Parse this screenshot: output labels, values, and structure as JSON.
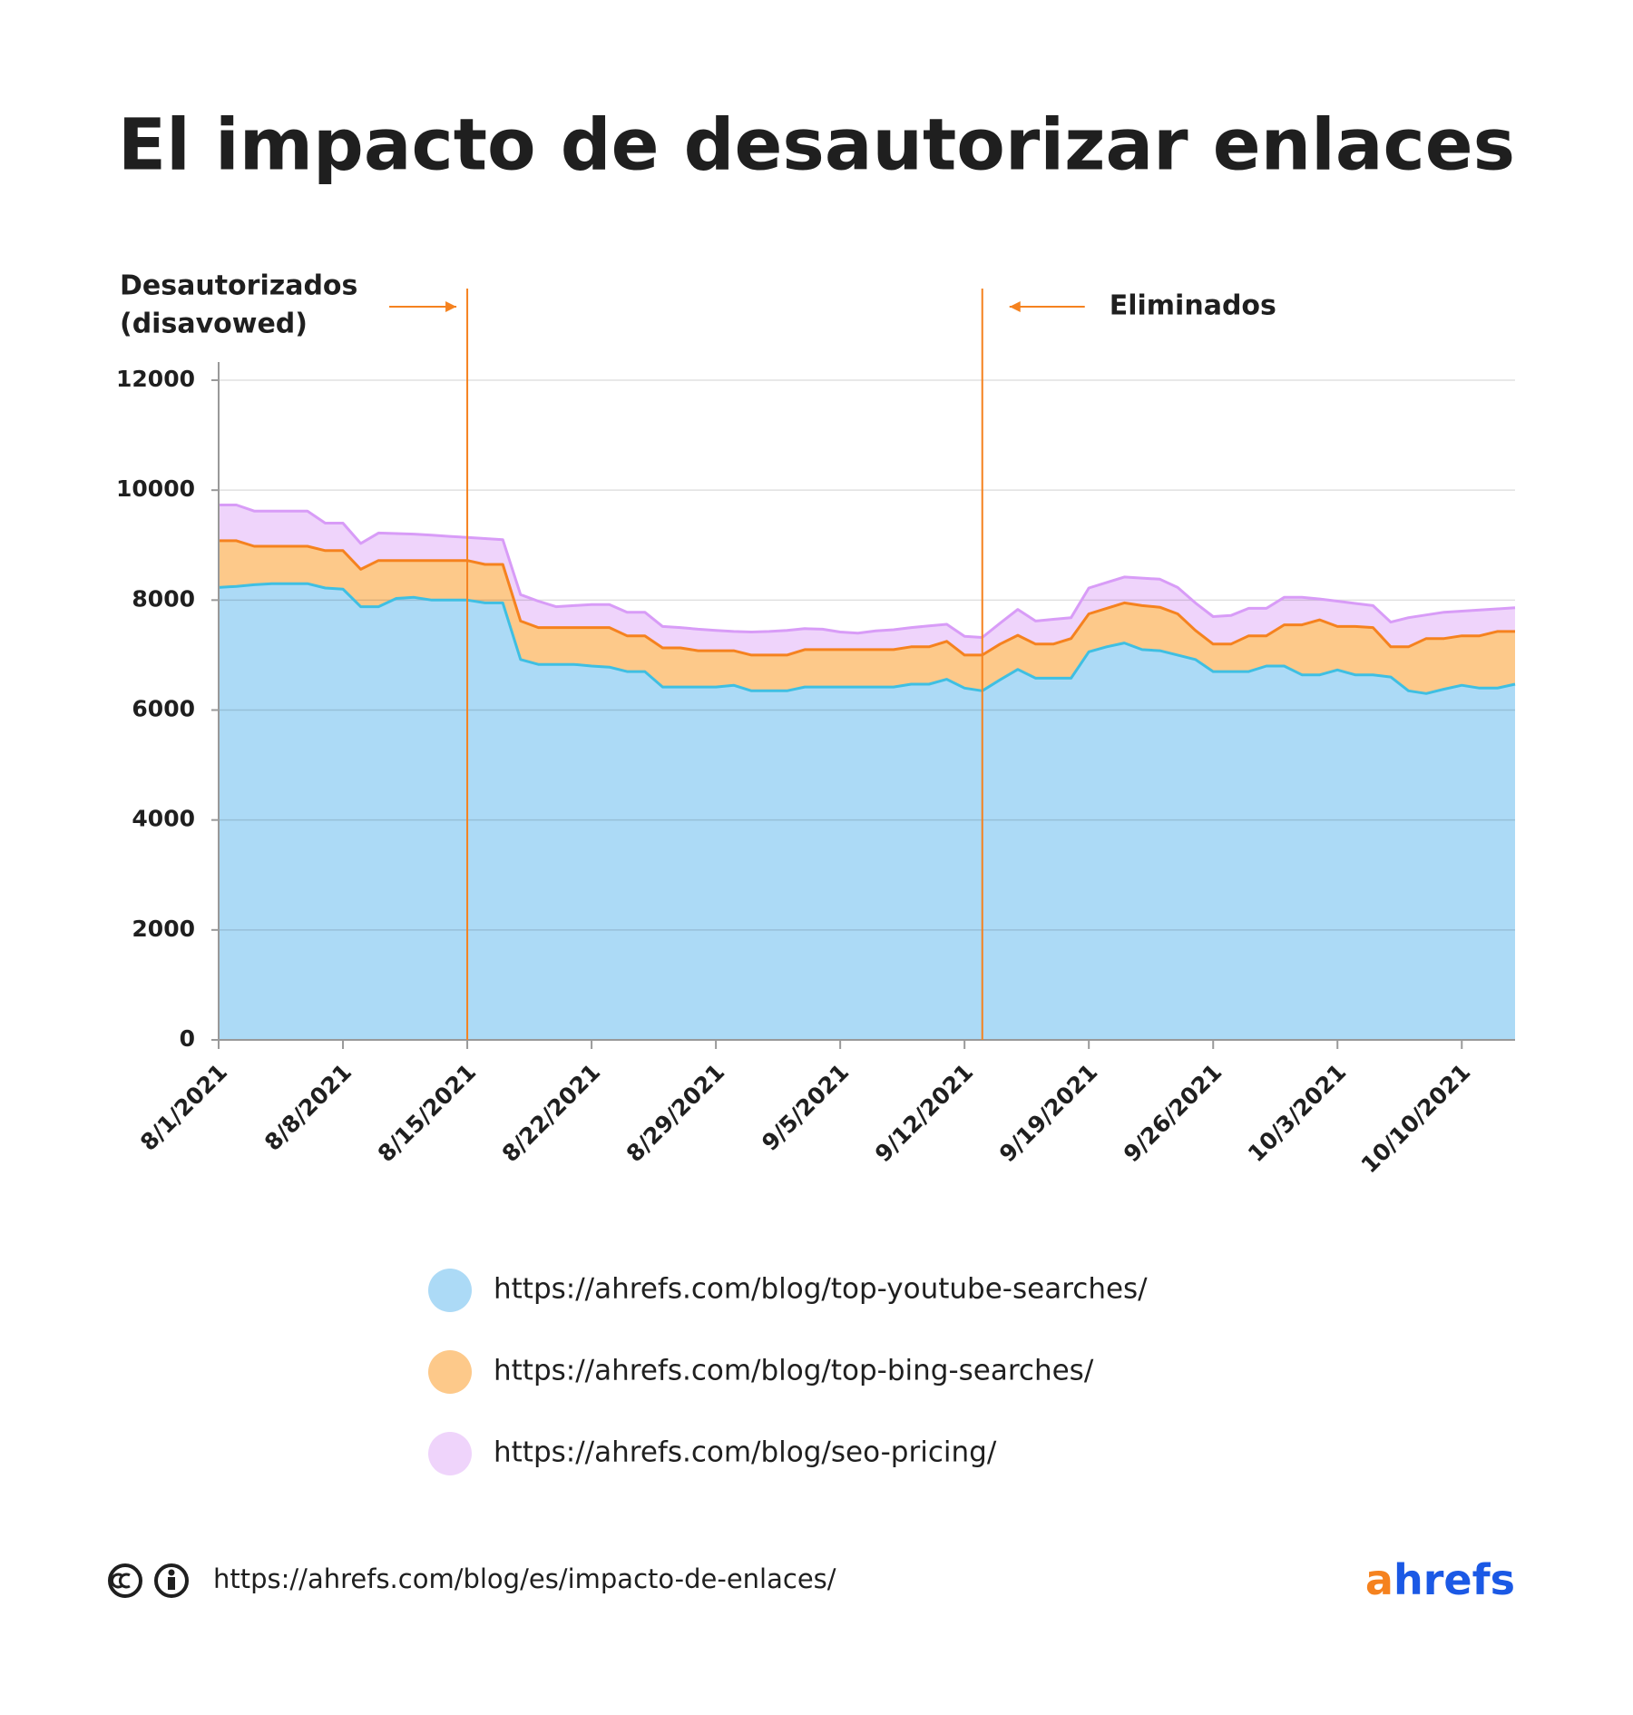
{
  "chart_data": {
    "type": "stacked_area",
    "title": "El impacto de desautorizar enlaces",
    "x": [
      "8/1/2021",
      "8/2/2021",
      "8/3/2021",
      "8/4/2021",
      "8/5/2021",
      "8/6/2021",
      "8/7/2021",
      "8/8/2021",
      "8/9/2021",
      "8/10/2021",
      "8/11/2021",
      "8/12/2021",
      "8/13/2021",
      "8/14/2021",
      "8/15/2021",
      "8/16/2021",
      "8/17/2021",
      "8/18/2021",
      "8/19/2021",
      "8/20/2021",
      "8/21/2021",
      "8/22/2021",
      "8/23/2021",
      "8/24/2021",
      "8/25/2021",
      "8/26/2021",
      "8/27/2021",
      "8/28/2021",
      "8/29/2021",
      "8/30/2021",
      "8/31/2021",
      "9/1/2021",
      "9/2/2021",
      "9/3/2021",
      "9/4/2021",
      "9/5/2021",
      "9/6/2021",
      "9/7/2021",
      "9/8/2021",
      "9/9/2021",
      "9/10/2021",
      "9/11/2021",
      "9/12/2021",
      "9/13/2021",
      "9/14/2021",
      "9/15/2021",
      "9/16/2021",
      "9/17/2021",
      "9/18/2021",
      "9/19/2021",
      "9/20/2021",
      "9/21/2021",
      "9/22/2021",
      "9/23/2021",
      "9/24/2021",
      "9/25/2021",
      "9/26/2021",
      "9/27/2021",
      "9/28/2021",
      "9/29/2021",
      "9/30/2021",
      "10/1/2021",
      "10/2/2021",
      "10/3/2021",
      "10/4/2021",
      "10/5/2021",
      "10/6/2021",
      "10/7/2021",
      "10/8/2021",
      "10/9/2021",
      "10/10/2021",
      "10/11/2021",
      "10/12/2021",
      "10/13/2021"
    ],
    "series": [
      {
        "name": "https://ahrefs.com/blog/top-youtube-searches/",
        "color": "#3fbfe2",
        "fill": "#acdaf6",
        "values": [
          8230,
          8250,
          8280,
          8300,
          8300,
          8300,
          8220,
          8200,
          7880,
          7880,
          8030,
          8050,
          8000,
          8000,
          8000,
          7950,
          7950,
          6920,
          6830,
          6830,
          6830,
          6800,
          6780,
          6700,
          6700,
          6420,
          6420,
          6420,
          6420,
          6450,
          6350,
          6350,
          6350,
          6420,
          6420,
          6420,
          6420,
          6420,
          6420,
          6470,
          6470,
          6560,
          6400,
          6350,
          6550,
          6740,
          6580,
          6580,
          6580,
          7060,
          7150,
          7220,
          7100,
          7080,
          7000,
          6920,
          6700,
          6700,
          6700,
          6800,
          6800,
          6640,
          6640,
          6730,
          6640,
          6640,
          6600,
          6350,
          6300,
          6380,
          6450,
          6400,
          6400,
          6470
        ]
      },
      {
        "name": "https://ahrefs.com/blog/top-bing-searches/",
        "color": "#f5821f",
        "fill": "#fdc98a",
        "values": [
          850,
          830,
          700,
          680,
          680,
          680,
          680,
          700,
          680,
          840,
          690,
          670,
          720,
          720,
          720,
          700,
          700,
          700,
          670,
          670,
          670,
          700,
          720,
          650,
          650,
          710,
          710,
          660,
          660,
          630,
          650,
          650,
          650,
          680,
          680,
          680,
          680,
          680,
          680,
          680,
          680,
          690,
          600,
          650,
          650,
          620,
          620,
          620,
          720,
          690,
          700,
          730,
          800,
          790,
          750,
          530,
          500,
          500,
          650,
          550,
          750,
          910,
          1000,
          790,
          880,
          860,
          550,
          800,
          1000,
          920,
          900,
          950,
          1030,
          960
        ]
      },
      {
        "name": "https://ahrefs.com/blog/seo-pricing/",
        "color": "#d89cf7",
        "fill": "#efd4fb",
        "values": [
          650,
          650,
          640,
          640,
          640,
          640,
          500,
          500,
          470,
          500,
          490,
          480,
          460,
          440,
          420,
          470,
          450,
          480,
          480,
          380,
          400,
          420,
          420,
          430,
          430,
          390,
          370,
          390,
          370,
          350,
          420,
          430,
          450,
          380,
          370,
          320,
          300,
          340,
          360,
          350,
          380,
          310,
          340,
          320,
          380,
          470,
          420,
          450,
          380,
          470,
          470,
          470,
          500,
          510,
          480,
          500,
          500,
          520,
          500,
          500,
          500,
          500,
          380,
          460,
          420,
          400,
          450,
          530,
          430,
          480,
          450,
          470,
          410,
          430
        ]
      }
    ],
    "ylim": [
      0,
      12000
    ],
    "yticks": [
      0,
      2000,
      4000,
      6000,
      8000,
      10000,
      12000
    ],
    "grid": true,
    "xticks": [
      "8/1/2021",
      "8/8/2021",
      "8/15/2021",
      "8/22/2021",
      "8/29/2021",
      "9/5/2021",
      "9/12/2021",
      "9/19/2021",
      "9/26/2021",
      "10/3/2021",
      "10/10/2021"
    ],
    "annotations": [
      {
        "text": [
          "Desautorizados",
          "(disavowed)"
        ],
        "x": "8/15/2021",
        "color": "#f5821f"
      },
      {
        "text": [
          "Eliminados"
        ],
        "x": "9/13/2021",
        "color": "#f5821f"
      }
    ],
    "source": "https://ahrefs.com/blog/es/impacto-de-enlaces/",
    "logo": [
      "a",
      "hrefs"
    ]
  }
}
